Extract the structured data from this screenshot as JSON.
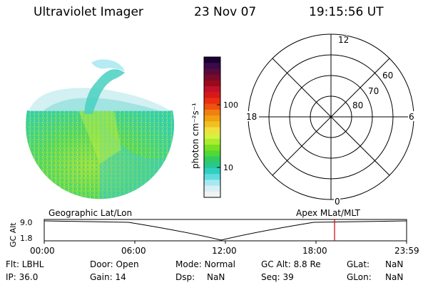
{
  "header": {
    "instrument": "Ultraviolet Imager",
    "date": "23 Nov 07",
    "time": "19:15:56 UT"
  },
  "colorbar": {
    "label": "photon cm⁻²s⁻¹",
    "ticks": [
      "100",
      "10"
    ],
    "colors": [
      "#1a0033",
      "#3a0a4a",
      "#5a0a3a",
      "#7a0a2a",
      "#9a0a1a",
      "#c0102a",
      "#d81818",
      "#e83010",
      "#f05010",
      "#f08010",
      "#f0a010",
      "#f0c020",
      "#f0e040",
      "#d8f040",
      "#a8ec30",
      "#78e020",
      "#50d838",
      "#30cc60",
      "#28c890",
      "#30d0c0",
      "#60dce0",
      "#a8e8f0",
      "#d8f0f4",
      "#f0f4f4"
    ]
  },
  "polar_grid": {
    "mlt_labels": [
      "12",
      "18",
      "6",
      "0"
    ],
    "lat_labels": [
      "60",
      "70",
      "80"
    ]
  },
  "timeline": {
    "left_label": "Geographic Lat/Lon",
    "right_label": "Apex MLat/MLT",
    "y_axis_label": "GC Alt",
    "y_ticks": [
      "9.0",
      "1.8"
    ],
    "x_ticks": [
      "00:00",
      "06:00",
      "12:00",
      "18:00",
      "23:59"
    ],
    "marker_color": "#cc0000"
  },
  "info": {
    "flt": "Flt: LBHL",
    "door": "Door: Open",
    "mode": "Mode: Normal",
    "gc_alt": "GC Alt: 8.8 Re",
    "glat_label": "GLat:",
    "glat_value": "NaN",
    "ip": "IP: 36.0",
    "gain": "Gain: 14",
    "dsp_label": "Dsp:",
    "dsp_value": "NaN",
    "seq": "Seq: 39",
    "glon_label": "GLon:",
    "glon_value": "NaN"
  }
}
